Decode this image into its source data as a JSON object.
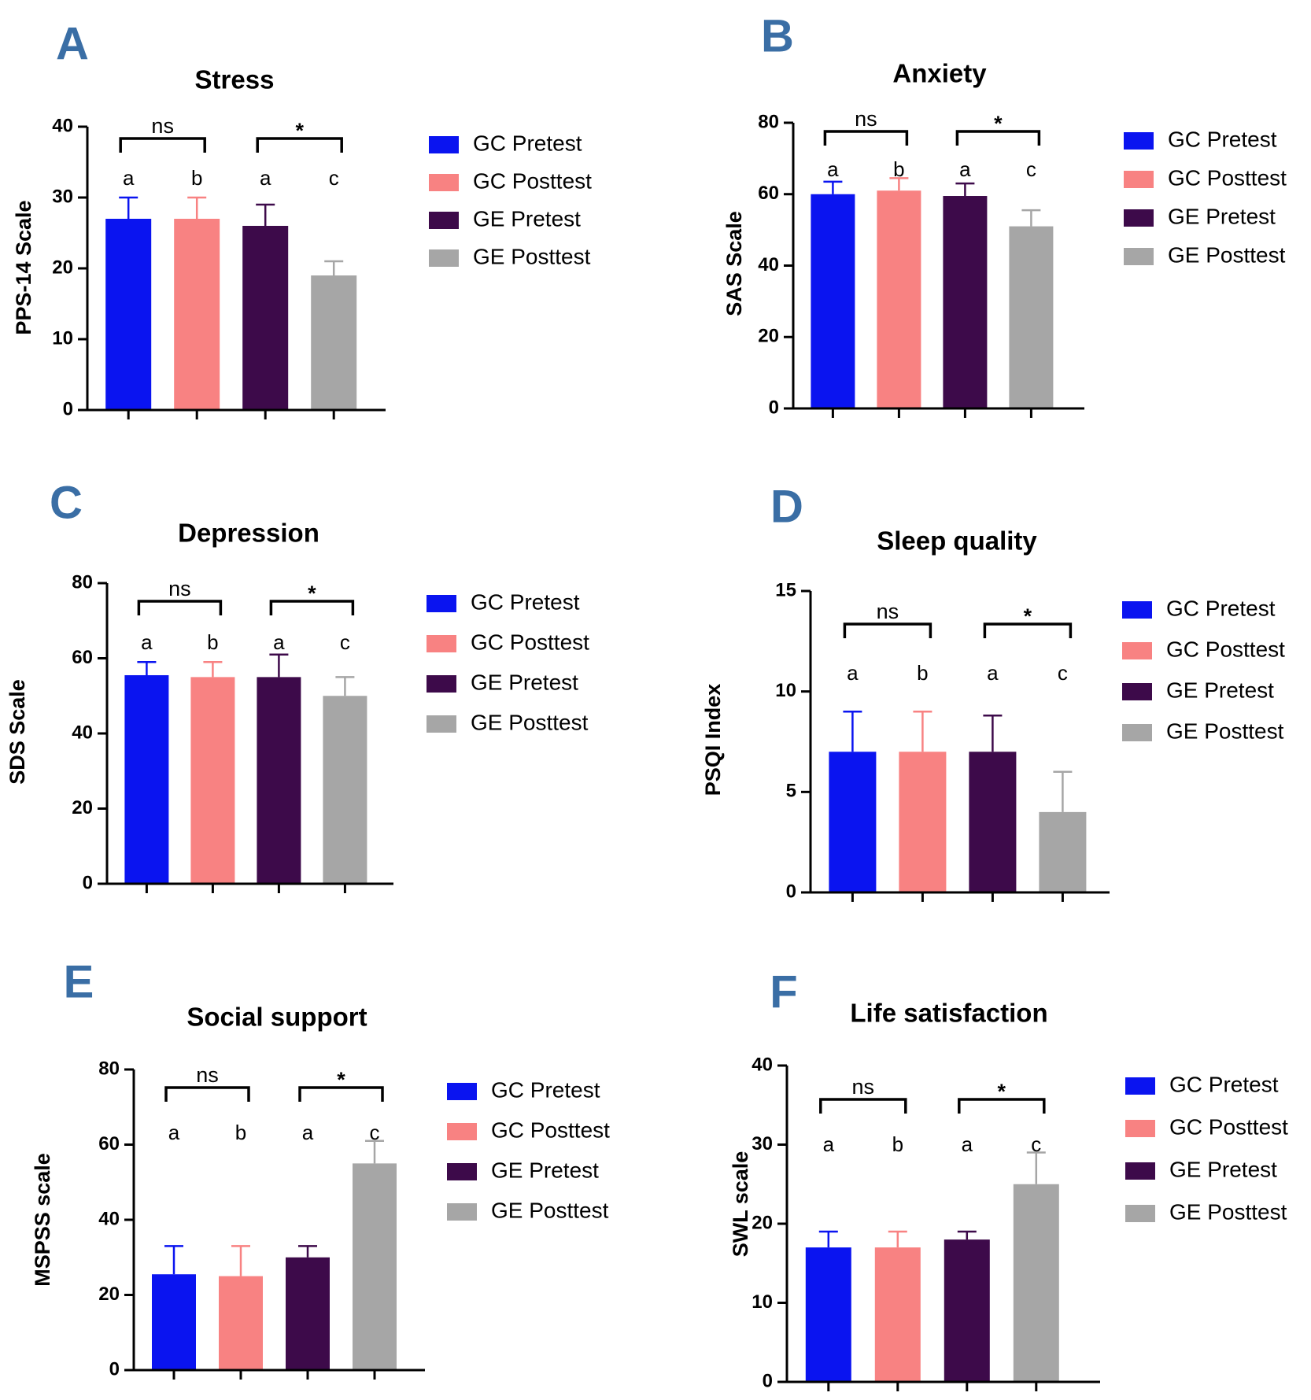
{
  "chart_data": [
    {
      "panel": "A",
      "type": "bar",
      "title": "Stress",
      "xlabel": "",
      "ylabel": "PPS-14 Scale",
      "ylim": [
        0,
        40
      ],
      "yticks": [
        0,
        10,
        20,
        30,
        40
      ],
      "categories": [
        "GC Pretest",
        "GC Posttest",
        "GE Pretest",
        "GE Posttest"
      ],
      "values": [
        27,
        27,
        26,
        19
      ],
      "errors": [
        3,
        3,
        3,
        2
      ],
      "letters": [
        "a",
        "b",
        "a",
        "c"
      ],
      "significance": [
        {
          "bars": [
            0,
            1
          ],
          "label": "ns"
        },
        {
          "bars": [
            2,
            3
          ],
          "label": "*"
        }
      ],
      "legend": [
        "GC Pretest",
        "GC Posttest",
        "GE Pretest",
        "GE Posttest"
      ]
    },
    {
      "panel": "B",
      "type": "bar",
      "title": "Anxiety",
      "xlabel": "",
      "ylabel": "SAS Scale",
      "ylim": [
        0,
        80
      ],
      "yticks": [
        0,
        20,
        40,
        60,
        80
      ],
      "categories": [
        "GC Pretest",
        "GC Posttest",
        "GE Pretest",
        "GE Posttest"
      ],
      "values": [
        60,
        61,
        59.5,
        51
      ],
      "errors": [
        3.5,
        3.5,
        3.5,
        4.5
      ],
      "letters": [
        "a",
        "b",
        "a",
        "c"
      ],
      "significance": [
        {
          "bars": [
            0,
            1
          ],
          "label": "ns"
        },
        {
          "bars": [
            2,
            3
          ],
          "label": "*"
        }
      ],
      "legend": [
        "GC Pretest",
        "GC Posttest",
        "GE Pretest",
        "GE Posttest"
      ]
    },
    {
      "panel": "C",
      "type": "bar",
      "title": "Depression",
      "xlabel": "",
      "ylabel": "SDS Scale",
      "ylim": [
        0,
        80
      ],
      "yticks": [
        0,
        20,
        40,
        60,
        80
      ],
      "categories": [
        "GC Pretest",
        "GC Posttest",
        "GE Pretest",
        "GE Posttest"
      ],
      "values": [
        55.5,
        55,
        55,
        50
      ],
      "errors": [
        3.5,
        4,
        6,
        5
      ],
      "letters": [
        "a",
        "b",
        "a",
        "c"
      ],
      "significance": [
        {
          "bars": [
            0,
            1
          ],
          "label": "ns"
        },
        {
          "bars": [
            2,
            3
          ],
          "label": "*"
        }
      ],
      "legend": [
        "GC Pretest",
        "GC Posttest",
        "GE Pretest",
        "GE Posttest"
      ]
    },
    {
      "panel": "D",
      "type": "bar",
      "title": "Sleep quality",
      "xlabel": "",
      "ylabel": "PSQI Index",
      "ylim": [
        0,
        15
      ],
      "yticks": [
        0,
        5,
        10,
        15
      ],
      "categories": [
        "GC Pretest",
        "GC Posttest",
        "GE Pretest",
        "GE Posttest"
      ],
      "values": [
        7,
        7,
        7,
        4
      ],
      "errors": [
        2,
        2,
        1.8,
        2
      ],
      "letters": [
        "a",
        "b",
        "a",
        "c"
      ],
      "significance": [
        {
          "bars": [
            0,
            1
          ],
          "label": "ns"
        },
        {
          "bars": [
            2,
            3
          ],
          "label": "*"
        }
      ],
      "legend": [
        "GC Pretest",
        "GC Posttest",
        "GE Pretest",
        "GE Posttest"
      ]
    },
    {
      "panel": "E",
      "type": "bar",
      "title": "Social support",
      "xlabel": "",
      "ylabel": "MSPSS scale",
      "ylim": [
        0,
        80
      ],
      "yticks": [
        0,
        20,
        40,
        60,
        80
      ],
      "categories": [
        "GC Pretest",
        "GC Posttest",
        "GE Pretest",
        "GE Posttest"
      ],
      "values": [
        25.5,
        25,
        30,
        55
      ],
      "errors": [
        7.5,
        8,
        3,
        6
      ],
      "letters": [
        "a",
        "b",
        "a",
        "c"
      ],
      "significance": [
        {
          "bars": [
            0,
            1
          ],
          "label": "ns"
        },
        {
          "bars": [
            2,
            3
          ],
          "label": "*"
        }
      ],
      "legend": [
        "GC Pretest",
        "GC Posttest",
        "GE Pretest",
        "GE Posttest"
      ]
    },
    {
      "panel": "F",
      "type": "bar",
      "title": "Life satisfaction",
      "xlabel": "",
      "ylabel": "SWL scale",
      "ylim": [
        0,
        40
      ],
      "yticks": [
        0,
        10,
        20,
        30,
        40
      ],
      "categories": [
        "GC Pretest",
        "GC Posttest",
        "GE Pretest",
        "GE Posttest"
      ],
      "values": [
        17,
        17,
        18,
        25
      ],
      "errors": [
        2,
        2,
        1,
        4
      ],
      "letters": [
        "a",
        "b",
        "a",
        "c"
      ],
      "significance": [
        {
          "bars": [
            0,
            1
          ],
          "label": "ns"
        },
        {
          "bars": [
            2,
            3
          ],
          "label": "*"
        }
      ],
      "legend": [
        "GC Pretest",
        "GC Posttest",
        "GE Pretest",
        "GE Posttest"
      ]
    }
  ],
  "colors": {
    "gc_pretest": "#0a14f0",
    "gc_posttest": "#f88282",
    "ge_pretest": "#3d0a4a",
    "ge_posttest": "#a6a6a6",
    "panel_letter": "#3a6ea5"
  }
}
